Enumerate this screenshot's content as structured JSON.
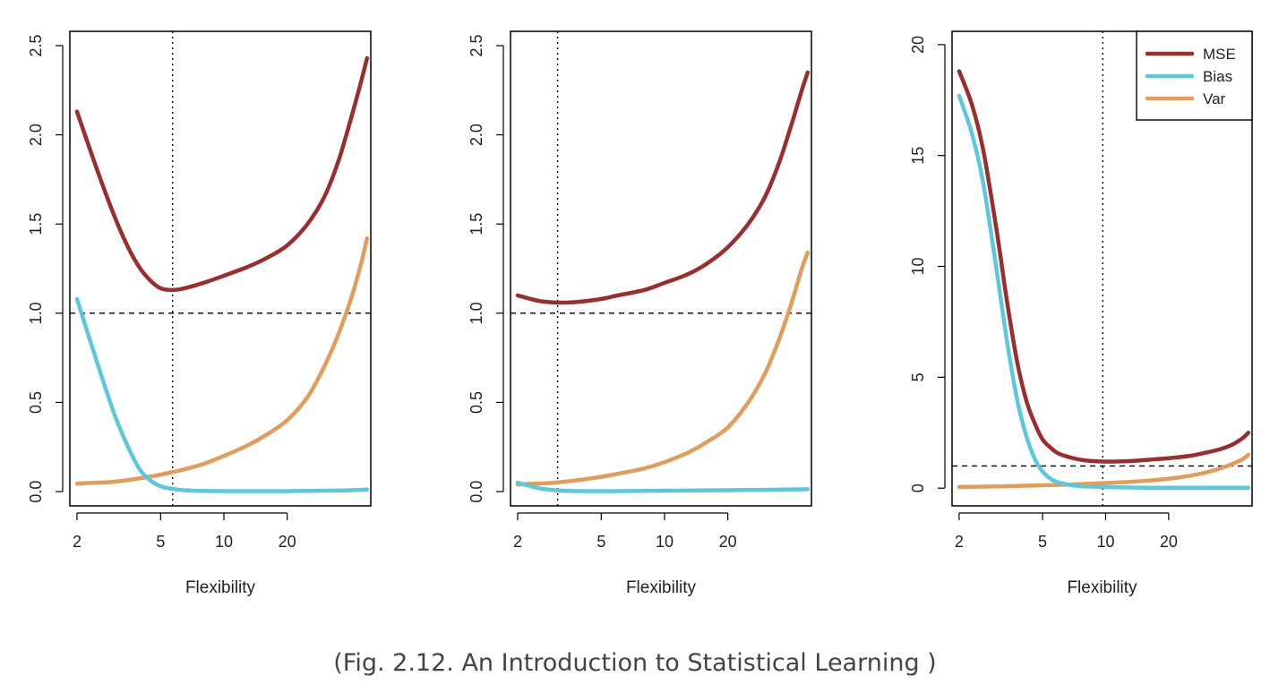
{
  "caption": "(Fig. 2.12. An Introduction to Statistical Learning )",
  "colors": {
    "MSE": "#9b2d2d",
    "Bias": "#5bc8de",
    "Var": "#e39c5a",
    "frame": "#000000"
  },
  "chart_data": [
    {
      "type": "line",
      "xlabel": "Flexibility",
      "ylabel": "",
      "x_scale": "log",
      "xlim": [
        1.85,
        50
      ],
      "ylim": [
        -0.08,
        2.58
      ],
      "x_ticks": [
        2,
        5,
        10,
        20
      ],
      "y_ticks": [
        0.0,
        0.5,
        1.0,
        1.5,
        2.0,
        2.5
      ],
      "y_tick_labels": [
        "0.0",
        "0.5",
        "1.0",
        "1.5",
        "2.0",
        "2.5"
      ],
      "vline_x": 5.7,
      "hline_y": 1.0,
      "legend": null,
      "series": [
        {
          "name": "MSE",
          "x": [
            2,
            2.5,
            3,
            3.5,
            4,
            4.5,
            5,
            5.7,
            6.5,
            8,
            10,
            13,
            16,
            20,
            25,
            30,
            35,
            40,
            45,
            48
          ],
          "y": [
            2.13,
            1.8,
            1.55,
            1.37,
            1.25,
            1.18,
            1.14,
            1.13,
            1.14,
            1.17,
            1.21,
            1.26,
            1.31,
            1.38,
            1.5,
            1.65,
            1.85,
            2.08,
            2.3,
            2.43
          ]
        },
        {
          "name": "Bias",
          "x": [
            2,
            2.5,
            3,
            3.5,
            4,
            4.5,
            5,
            5.7,
            6.5,
            8,
            10,
            13,
            16,
            20,
            25,
            30,
            35,
            40,
            45,
            48
          ],
          "y": [
            1.08,
            0.72,
            0.44,
            0.25,
            0.12,
            0.06,
            0.03,
            0.015,
            0.008,
            0.004,
            0.003,
            0.003,
            0.003,
            0.003,
            0.004,
            0.005,
            0.006,
            0.008,
            0.01,
            0.012
          ]
        },
        {
          "name": "Var",
          "x": [
            2,
            2.5,
            3,
            3.5,
            4,
            4.5,
            5,
            5.7,
            6.5,
            8,
            10,
            13,
            16,
            20,
            25,
            30,
            35,
            40,
            45,
            48
          ],
          "y": [
            0.045,
            0.05,
            0.055,
            0.065,
            0.075,
            0.085,
            0.095,
            0.11,
            0.125,
            0.155,
            0.2,
            0.26,
            0.32,
            0.4,
            0.53,
            0.7,
            0.88,
            1.07,
            1.28,
            1.42
          ]
        }
      ]
    },
    {
      "type": "line",
      "xlabel": "Flexibility",
      "ylabel": "",
      "x_scale": "log",
      "xlim": [
        1.85,
        50
      ],
      "ylim": [
        -0.08,
        2.58
      ],
      "x_ticks": [
        2,
        5,
        10,
        20
      ],
      "y_ticks": [
        0.0,
        0.5,
        1.0,
        1.5,
        2.0,
        2.5
      ],
      "y_tick_labels": [
        "0.0",
        "0.5",
        "1.0",
        "1.5",
        "2.0",
        "2.5"
      ],
      "vline_x": 3.1,
      "hline_y": 1.0,
      "legend": null,
      "series": [
        {
          "name": "MSE",
          "x": [
            2,
            2.5,
            3,
            3.5,
            4,
            5,
            6,
            8,
            10,
            13,
            16,
            20,
            25,
            30,
            35,
            40,
            45,
            48
          ],
          "y": [
            1.1,
            1.07,
            1.06,
            1.06,
            1.065,
            1.08,
            1.1,
            1.13,
            1.17,
            1.22,
            1.28,
            1.37,
            1.5,
            1.65,
            1.84,
            2.05,
            2.25,
            2.35
          ]
        },
        {
          "name": "Bias",
          "x": [
            2,
            2.5,
            3,
            3.5,
            4,
            5,
            6,
            8,
            10,
            13,
            16,
            20,
            25,
            30,
            35,
            40,
            45,
            48
          ],
          "y": [
            0.05,
            0.02,
            0.008,
            0.004,
            0.003,
            0.003,
            0.003,
            0.004,
            0.005,
            0.006,
            0.007,
            0.008,
            0.009,
            0.01,
            0.011,
            0.012,
            0.013,
            0.014
          ]
        },
        {
          "name": "Var",
          "x": [
            2,
            2.5,
            3,
            3.5,
            4,
            5,
            6,
            8,
            10,
            13,
            16,
            20,
            25,
            30,
            35,
            40,
            45,
            48
          ],
          "y": [
            0.04,
            0.045,
            0.05,
            0.058,
            0.066,
            0.083,
            0.1,
            0.13,
            0.165,
            0.22,
            0.28,
            0.36,
            0.5,
            0.66,
            0.85,
            1.05,
            1.25,
            1.34
          ]
        }
      ]
    },
    {
      "type": "line",
      "xlabel": "Flexibility",
      "ylabel": "",
      "x_scale": "log",
      "xlim": [
        1.85,
        50
      ],
      "ylim": [
        -0.8,
        20.6
      ],
      "x_ticks": [
        2,
        5,
        10,
        20
      ],
      "y_ticks": [
        0,
        5,
        10,
        15,
        20
      ],
      "y_tick_labels": [
        "0",
        "5",
        "10",
        "15",
        "20"
      ],
      "vline_x": 9.7,
      "hline_y": 1.0,
      "legend": {
        "placement": "top-right",
        "entries": [
          "MSE",
          "Bias",
          "Var"
        ]
      },
      "series": [
        {
          "name": "MSE",
          "x": [
            2,
            2.3,
            2.6,
            3,
            3.4,
            3.8,
            4.2,
            4.6,
            5,
            5.5,
            6,
            7,
            8,
            10,
            13,
            16,
            20,
            25,
            30,
            35,
            40,
            45,
            48
          ],
          "y": [
            18.8,
            17.3,
            15.3,
            11.8,
            8.3,
            5.6,
            3.9,
            2.9,
            2.2,
            1.8,
            1.55,
            1.35,
            1.25,
            1.2,
            1.22,
            1.28,
            1.35,
            1.45,
            1.6,
            1.75,
            1.95,
            2.25,
            2.5
          ]
        },
        {
          "name": "Bias",
          "x": [
            2,
            2.3,
            2.6,
            3,
            3.4,
            3.8,
            4.2,
            4.6,
            5,
            5.5,
            6,
            7,
            8,
            10,
            13,
            16,
            20,
            25,
            30,
            35,
            40,
            45,
            48
          ],
          "y": [
            17.7,
            16.0,
            13.8,
            10.0,
            6.5,
            3.9,
            2.3,
            1.3,
            0.75,
            0.4,
            0.25,
            0.12,
            0.08,
            0.05,
            0.03,
            0.02,
            0.02,
            0.02,
            0.02,
            0.02,
            0.02,
            0.02,
            0.02
          ]
        },
        {
          "name": "Var",
          "x": [
            2,
            2.3,
            2.6,
            3,
            3.4,
            3.8,
            4.2,
            4.6,
            5,
            5.5,
            6,
            7,
            8,
            10,
            13,
            16,
            20,
            25,
            30,
            35,
            40,
            45,
            48
          ],
          "y": [
            0.05,
            0.06,
            0.07,
            0.08,
            0.09,
            0.1,
            0.11,
            0.12,
            0.13,
            0.14,
            0.15,
            0.17,
            0.19,
            0.23,
            0.28,
            0.34,
            0.42,
            0.55,
            0.7,
            0.88,
            1.08,
            1.3,
            1.5
          ]
        }
      ]
    }
  ]
}
